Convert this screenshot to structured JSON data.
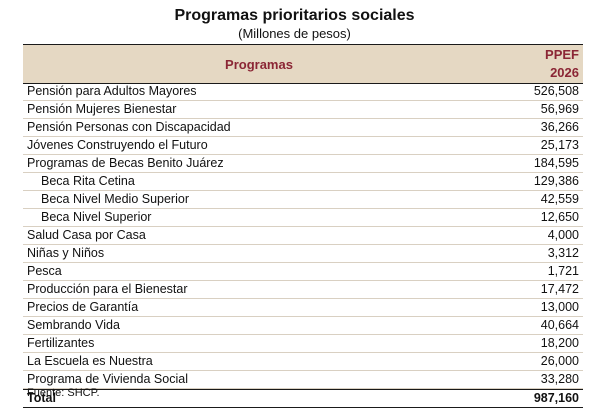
{
  "title": "Programas prioritarios sociales",
  "subtitle": "(Millones de pesos)",
  "header": {
    "col_program": "Programas",
    "col_value_line1": "PPEF",
    "col_value_line2": "2026"
  },
  "rows": [
    {
      "label": "Pensión para Adultos Mayores",
      "value": "526,508"
    },
    {
      "label": "Pensión Mujeres Bienestar",
      "value": "56,969"
    },
    {
      "label": "Pensión Personas con Discapacidad",
      "value": "36,266"
    },
    {
      "label": "Jóvenes Construyendo el Futuro",
      "value": "25,173"
    },
    {
      "label": "Programas de Becas Benito Juárez",
      "value": "184,595"
    },
    {
      "label": "Beca Rita Cetina",
      "value": "129,386"
    },
    {
      "label": "Beca Nivel Medio Superior",
      "value": "42,559"
    },
    {
      "label": "Beca Nivel Superior",
      "value": "12,650"
    },
    {
      "label": "Salud Casa por Casa",
      "value": "4,000"
    },
    {
      "label": "Niñas y Niños",
      "value": "3,312"
    },
    {
      "label": "Pesca",
      "value": "1,721"
    },
    {
      "label": "Producción para el Bienestar",
      "value": "17,472"
    },
    {
      "label": "Precios de Garantía",
      "value": "13,000"
    },
    {
      "label": "Sembrando Vida",
      "value": "40,664"
    },
    {
      "label": "Fertilizantes",
      "value": "18,200"
    },
    {
      "label": "La Escuela es Nuestra",
      "value": "26,000"
    },
    {
      "label": "Programa de Vivienda Social",
      "value": "33,280"
    }
  ],
  "total": {
    "label": "Total",
    "value": "987,160"
  },
  "footer": "Fuente: SHCP.",
  "colors": {
    "accent": "#8b2635",
    "header_bg": "#e5d8c3"
  }
}
